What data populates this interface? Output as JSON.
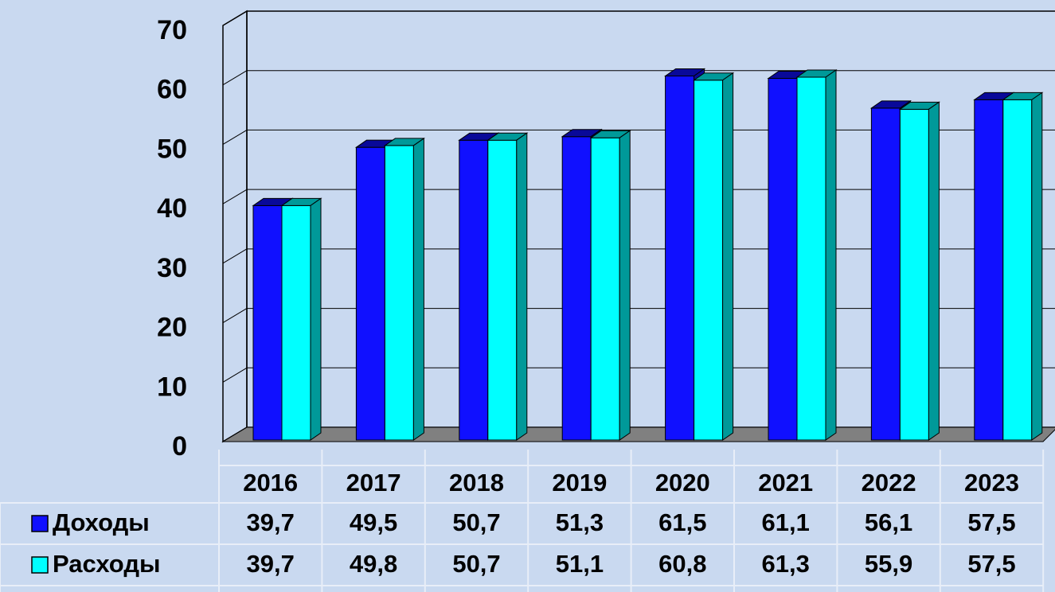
{
  "chart_data": {
    "type": "bar3d",
    "categories": [
      "2016",
      "2017",
      "2018",
      "2019",
      "2020",
      "2021",
      "2022",
      "2023"
    ],
    "series": [
      {
        "name": "Доходы",
        "color": "#1010ff",
        "values": [
          39.7,
          49.5,
          50.7,
          51.3,
          61.5,
          61.1,
          56.1,
          57.5
        ],
        "value_labels": [
          "39,7",
          "49,5",
          "50,7",
          "51,3",
          "61,5",
          "61,1",
          "56,1",
          "57,5"
        ]
      },
      {
        "name": "Расходы",
        "color": "#00ffff",
        "values": [
          39.7,
          49.8,
          50.7,
          51.1,
          60.8,
          61.3,
          55.9,
          57.5
        ],
        "value_labels": [
          "39,7",
          "49,8",
          "50,7",
          "51,1",
          "60,8",
          "61,3",
          "55,9",
          "57,5"
        ]
      }
    ],
    "ylim": [
      0,
      70
    ],
    "yticks": [
      0,
      10,
      20,
      30,
      40,
      50,
      60,
      70
    ],
    "grid": true
  }
}
